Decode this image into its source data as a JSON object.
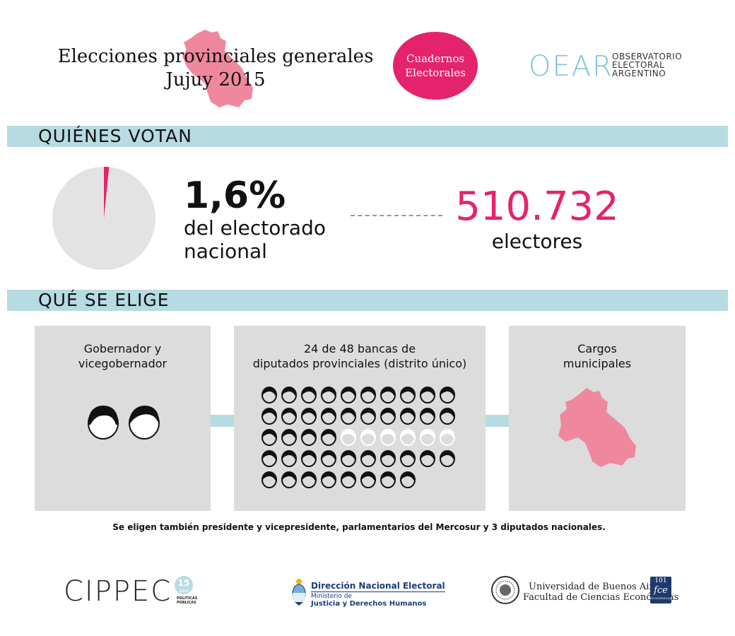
{
  "header": {
    "title_line1": "Elecciones provinciales generales",
    "title_line2": "Jujuy 2015",
    "badge_line1": "Cuadernos",
    "badge_line2": "Electorales",
    "oear_logo": "OEAR",
    "oear_sub": [
      "OBSERVATORIO",
      "ELECTORAL",
      "ARGENTINO"
    ]
  },
  "section_votan": {
    "title": "QUIÉNES VOTAN",
    "percent": "1,6%",
    "percent_value": 1.6,
    "percent_desc_line1": "del electorado",
    "percent_desc_line2": "nacional",
    "voters": "510.732",
    "voters_label": "electores"
  },
  "section_elige": {
    "title": "QUÉ SE ELIGE",
    "box1_line1": "Gobernador y",
    "box1_line2": "vicegobernador",
    "box2_line1": "24 de 48 bancas de",
    "box2_line2": "diputados provinciales (distrito único)",
    "seats_total": 48,
    "seats_elected": 24,
    "box3_line1": "Cargos",
    "box3_line2": "municipales"
  },
  "note": "Se eligen también presidente y vicepresidente, parlamentarios del Mercosur y 3 diputados nacionales.",
  "footer": {
    "cippec": "CIPPEC",
    "cippec_years": "15",
    "cippec_years_label": "años",
    "cippec_pp_line1": "POLÍTICAS",
    "cippec_pp_line2": "PÚBLICAS",
    "dne_title": "Dirección Nacional Electoral",
    "dne_sub1": "Ministerio de",
    "dne_sub2": "Justicia y Derechos Humanos",
    "uba_line1": "Universidad de Buenos Aires",
    "uba_line2": "Facultad de Ciencias Económicas",
    "fce_years": "101",
    "fce_name": "fce",
    "fce_small": "ECONÓMICAS"
  },
  "colors": {
    "accent_pink": "#e5236c",
    "map_pink": "#ef879f",
    "section_blue": "#b7dbe2",
    "box_gray": "#dcdcdc",
    "pie_gray": "#e3e3e3"
  }
}
